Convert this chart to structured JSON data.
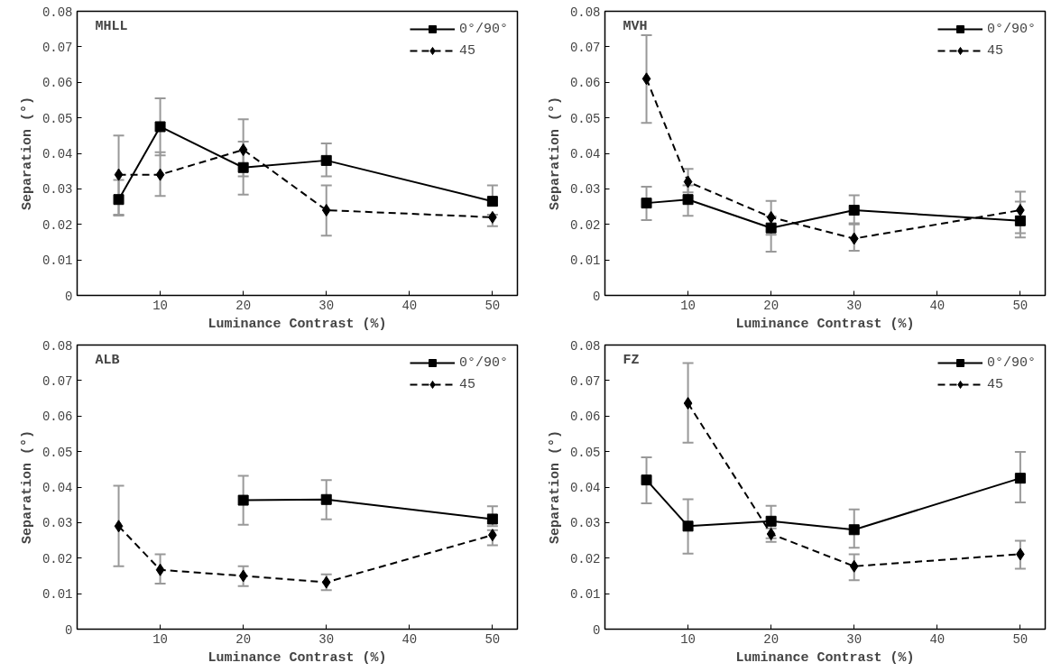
{
  "chart_data": [
    {
      "type": "line",
      "title": "MHLL",
      "xlabel": "Luminance Contrast (%)",
      "ylabel": "Separation (°)",
      "xlim": [
        0,
        53
      ],
      "xticks": [
        10,
        20,
        30,
        40,
        50
      ],
      "ylim": [
        0,
        0.08
      ],
      "yticks": [
        0,
        0.01,
        0.02,
        0.03,
        0.04,
        0.05,
        0.06,
        0.07,
        0.08
      ],
      "legend": "top right",
      "grid": false,
      "series": [
        {
          "name": "0°/90°",
          "color": "#000000",
          "marker": "square",
          "line_style": "solid",
          "x": [
            5,
            10,
            20,
            30,
            50
          ],
          "values": [
            0.027,
            0.0475,
            0.036,
            0.038,
            0.0265
          ],
          "errors": [
            [
              0.0227,
              0.0325
            ],
            [
              0.0394,
              0.0555
            ],
            [
              0.0284,
              0.0433
            ],
            [
              0.0335,
              0.0428
            ],
            [
              0.0254,
              0.031
            ]
          ]
        },
        {
          "name": "45",
          "color": "#000000",
          "marker": "diamond",
          "line_style": "dashed",
          "x": [
            5,
            10,
            20,
            30,
            50
          ],
          "values": [
            0.034,
            0.034,
            0.041,
            0.024,
            0.022
          ],
          "errors": [
            [
              0.0225,
              0.045
            ],
            [
              0.028,
              0.0403
            ],
            [
              0.0335,
              0.0496
            ],
            [
              0.0168,
              0.031
            ],
            [
              0.0195,
              0.0227
            ]
          ]
        }
      ]
    },
    {
      "type": "line",
      "title": "MVH",
      "xlabel": "Luminance Contrast (%)",
      "ylabel": "Separation (°)",
      "xlim": [
        0,
        53
      ],
      "xticks": [
        10,
        20,
        30,
        40,
        50
      ],
      "ylim": [
        0,
        0.08
      ],
      "yticks": [
        0,
        0.01,
        0.02,
        0.03,
        0.04,
        0.05,
        0.06,
        0.07,
        0.08
      ],
      "legend": "top right",
      "grid": false,
      "series": [
        {
          "name": "0°/90°",
          "color": "#000000",
          "marker": "square",
          "line_style": "solid",
          "x": [
            5,
            10,
            20,
            30,
            50
          ],
          "values": [
            0.026,
            0.027,
            0.019,
            0.024,
            0.021
          ],
          "errors": [
            [
              0.0212,
              0.0306
            ],
            [
              0.0224,
              0.031
            ],
            [
              0.0171,
              0.0222
            ],
            [
              0.0203,
              0.0282
            ],
            [
              0.0163,
              0.0264
            ]
          ]
        },
        {
          "name": "45",
          "color": "#000000",
          "marker": "diamond",
          "line_style": "dashed",
          "x": [
            5,
            10,
            20,
            30,
            50
          ],
          "values": [
            0.061,
            0.032,
            0.022,
            0.016,
            0.024
          ],
          "errors": [
            [
              0.0486,
              0.0733
            ],
            [
              0.029,
              0.0356
            ],
            [
              0.0123,
              0.0266
            ],
            [
              0.0126,
              0.02
            ],
            [
              0.0175,
              0.0292
            ]
          ]
        }
      ]
    },
    {
      "type": "line",
      "title": "ALB",
      "xlabel": "Luminance Contrast (%)",
      "ylabel": "Separation (°)",
      "xlim": [
        0,
        53
      ],
      "xticks": [
        10,
        20,
        30,
        40,
        50
      ],
      "ylim": [
        0,
        0.08
      ],
      "yticks": [
        0,
        0.01,
        0.02,
        0.03,
        0.04,
        0.05,
        0.06,
        0.07,
        0.08
      ],
      "legend": "top right",
      "grid": false,
      "series": [
        {
          "name": "0°/90°",
          "color": "#000000",
          "marker": "square",
          "line_style": "solid",
          "x": [
            20,
            30,
            50
          ],
          "values": [
            0.0363,
            0.0365,
            0.031
          ],
          "errors": [
            [
              0.0294,
              0.0432
            ],
            [
              0.0309,
              0.042
            ],
            [
              0.029,
              0.0346
            ]
          ]
        },
        {
          "name": "45",
          "color": "#000000",
          "marker": "diamond",
          "line_style": "dashed",
          "x": [
            5,
            10,
            20,
            30,
            50
          ],
          "values": [
            0.029,
            0.0167,
            0.015,
            0.0132,
            0.0265
          ],
          "errors": [
            [
              0.0177,
              0.0404
            ],
            [
              0.0128,
              0.0211
            ],
            [
              0.0121,
              0.0177
            ],
            [
              0.011,
              0.0154
            ],
            [
              0.0236,
              0.0279
            ]
          ]
        }
      ]
    },
    {
      "type": "line",
      "title": "FZ",
      "xlabel": "Luminance Contrast (%)",
      "ylabel": "Separation (°)",
      "xlim": [
        0,
        53
      ],
      "xticks": [
        10,
        20,
        30,
        40,
        50
      ],
      "ylim": [
        0,
        0.08
      ],
      "yticks": [
        0,
        0.01,
        0.02,
        0.03,
        0.04,
        0.05,
        0.06,
        0.07,
        0.08
      ],
      "legend": "top right",
      "grid": false,
      "series": [
        {
          "name": "0°/90°",
          "color": "#000000",
          "marker": "square",
          "line_style": "solid",
          "x": [
            5,
            10,
            20,
            30,
            50
          ],
          "values": [
            0.042,
            0.029,
            0.0304,
            0.028,
            0.0425
          ],
          "errors": [
            [
              0.0354,
              0.0484
            ],
            [
              0.0213,
              0.0366
            ],
            [
              0.0256,
              0.0347
            ],
            [
              0.0229,
              0.0337
            ],
            [
              0.0357,
              0.0499
            ]
          ]
        },
        {
          "name": "45",
          "color": "#000000",
          "marker": "diamond",
          "line_style": "dashed",
          "x": [
            10,
            20,
            30,
            50
          ],
          "values": [
            0.0636,
            0.0268,
            0.0177,
            0.0211
          ],
          "errors": [
            [
              0.0525,
              0.0749
            ],
            [
              0.0246,
              0.0284
            ],
            [
              0.0138,
              0.0211
            ],
            [
              0.017,
              0.0249
            ]
          ]
        }
      ]
    }
  ]
}
